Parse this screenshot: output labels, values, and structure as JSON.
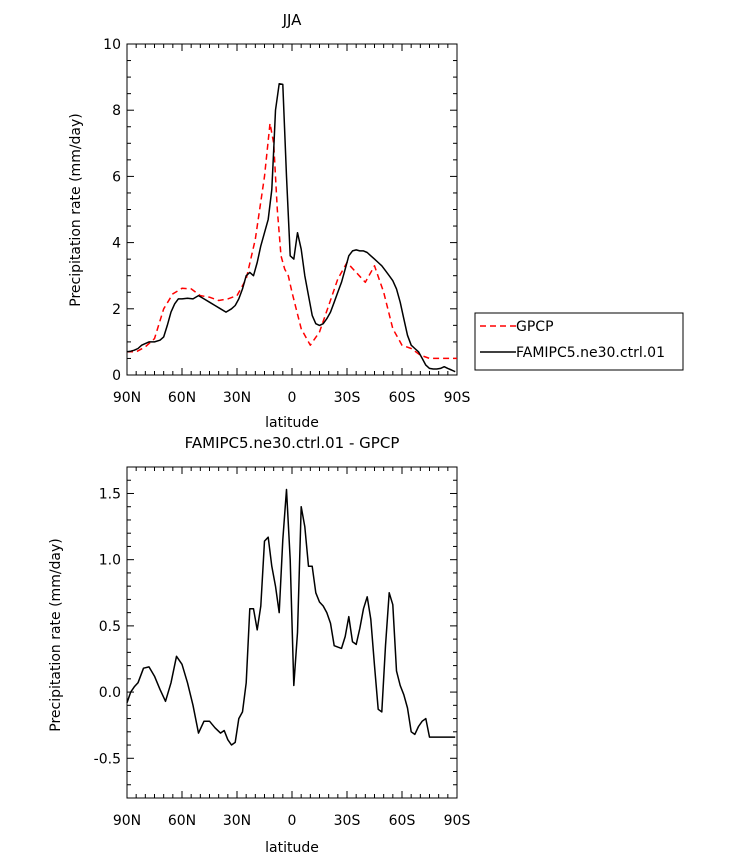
{
  "chart_data": [
    {
      "type": "line",
      "title": "JJA",
      "xlabel": "latitude",
      "ylabel": "Precipitation rate (mm/day)",
      "xlim": [
        90,
        -90
      ],
      "ylim": [
        0,
        10
      ],
      "x_ticks": [
        90,
        60,
        30,
        0,
        -30,
        -60,
        -90
      ],
      "x_tick_labels": [
        "90N",
        "60N",
        "30N",
        "0",
        "30S",
        "60S",
        "90S"
      ],
      "y_ticks": [
        0,
        2,
        4,
        6,
        8,
        10
      ],
      "y_tick_labels": [
        "0",
        "2",
        "4",
        "6",
        "8",
        "10"
      ],
      "legend_position": "right",
      "series": [
        {
          "name": "GPCP",
          "color": "#ff0000",
          "dash": "dashed",
          "x": [
            90,
            85,
            80,
            75,
            70,
            65,
            60,
            55,
            50,
            45,
            40,
            35,
            30,
            25,
            20,
            15,
            12,
            10,
            8,
            6,
            4,
            2,
            0,
            -5,
            -10,
            -15,
            -20,
            -25,
            -30,
            -35,
            -40,
            -45,
            -50,
            -55,
            -60,
            -65,
            -70,
            -75,
            -80,
            -85,
            -90
          ],
          "values": [
            0.7,
            0.7,
            0.85,
            1.1,
            2.0,
            2.45,
            2.62,
            2.6,
            2.4,
            2.35,
            2.25,
            2.3,
            2.4,
            2.9,
            4.1,
            6.0,
            7.6,
            7.0,
            5.0,
            3.6,
            3.2,
            3.0,
            2.5,
            1.4,
            0.9,
            1.3,
            2.1,
            2.9,
            3.4,
            3.1,
            2.8,
            3.3,
            2.5,
            1.4,
            0.9,
            0.8,
            0.6,
            0.5,
            0.5,
            0.5,
            0.5
          ]
        },
        {
          "name": "FAMIPC5.ne30.ctrl.01",
          "color": "#000000",
          "dash": "solid",
          "x": [
            90,
            88,
            86,
            84,
            82,
            80,
            78,
            75,
            72,
            70,
            68,
            66,
            64,
            62,
            60,
            57,
            54,
            51,
            48,
            45,
            42,
            39,
            36,
            33,
            31,
            29,
            27,
            25,
            23,
            21,
            19,
            17,
            15,
            13,
            11,
            10,
            9,
            7,
            5,
            3,
            1,
            -1,
            -3,
            -5,
            -7,
            -9,
            -11,
            -13,
            -15,
            -17,
            -19,
            -21,
            -23,
            -25,
            -27,
            -29,
            -31,
            -33,
            -35,
            -37,
            -39,
            -41,
            -43,
            -45,
            -47,
            -49,
            -51,
            -53,
            -55,
            -57,
            -59,
            -61,
            -63,
            -65,
            -67,
            -69,
            -71,
            -73,
            -75,
            -77,
            -79,
            -81,
            -83,
            -85,
            -87,
            -89
          ],
          "values": [
            0.7,
            0.72,
            0.75,
            0.8,
            0.9,
            0.95,
            1.0,
            1.0,
            1.05,
            1.15,
            1.5,
            1.9,
            2.15,
            2.3,
            2.3,
            2.32,
            2.3,
            2.4,
            2.3,
            2.2,
            2.1,
            2.0,
            1.9,
            2.0,
            2.1,
            2.3,
            2.6,
            3.0,
            3.1,
            3.0,
            3.4,
            3.9,
            4.3,
            4.7,
            5.6,
            6.8,
            8.0,
            8.8,
            8.78,
            6.0,
            3.6,
            3.5,
            4.3,
            3.8,
            3.0,
            2.4,
            1.8,
            1.55,
            1.5,
            1.55,
            1.7,
            1.9,
            2.2,
            2.5,
            2.8,
            3.2,
            3.6,
            3.75,
            3.78,
            3.75,
            3.75,
            3.7,
            3.6,
            3.5,
            3.4,
            3.3,
            3.15,
            3.0,
            2.85,
            2.6,
            2.2,
            1.7,
            1.2,
            0.9,
            0.8,
            0.7,
            0.5,
            0.3,
            0.2,
            0.18,
            0.18,
            0.2,
            0.25,
            0.2,
            0.15,
            0.1
          ]
        }
      ]
    },
    {
      "type": "line",
      "title": "FAMIPC5.ne30.ctrl.01 - GPCP",
      "xlabel": "latitude",
      "ylabel": "Precipitation rate (mm/day)",
      "xlim": [
        90,
        -90
      ],
      "ylim": [
        -0.8,
        1.7
      ],
      "x_ticks": [
        90,
        60,
        30,
        0,
        -30,
        -60,
        -90
      ],
      "x_tick_labels": [
        "90N",
        "60N",
        "30N",
        "0",
        "30S",
        "60S",
        "90S"
      ],
      "y_ticks": [
        -0.5,
        0.0,
        0.5,
        1.0,
        1.5
      ],
      "y_tick_labels": [
        "-0.5",
        "0.0",
        "0.5",
        "1.0",
        "1.5"
      ],
      "series": [
        {
          "color": "#000000",
          "dash": "solid",
          "x": [
            90,
            88,
            86,
            84,
            81,
            78,
            75,
            72,
            69,
            66,
            63,
            60,
            57,
            54,
            51,
            48,
            45,
            42,
            39,
            37,
            35,
            33,
            31,
            29,
            27,
            25,
            23,
            21,
            19,
            17,
            15,
            13,
            11,
            9,
            7,
            5,
            3,
            1,
            -1,
            -3,
            -5,
            -7,
            -9,
            -11,
            -13,
            -15,
            -17,
            -19,
            -21,
            -23,
            -25,
            -27,
            -29,
            -31,
            -33,
            -35,
            -37,
            -39,
            -41,
            -43,
            -45,
            -47,
            -49,
            -51,
            -53,
            -55,
            -57,
            -59,
            -61,
            -63,
            -65,
            -67,
            -69,
            -71,
            -73,
            -75,
            -77,
            -79,
            -81,
            -83,
            -85,
            -87,
            -89
          ],
          "values": [
            -0.08,
            0.0,
            0.04,
            0.07,
            0.18,
            0.19,
            0.12,
            0.02,
            -0.07,
            0.07,
            0.27,
            0.21,
            0.07,
            -0.1,
            -0.31,
            -0.22,
            -0.22,
            -0.27,
            -0.31,
            -0.29,
            -0.36,
            -0.4,
            -0.38,
            -0.2,
            -0.15,
            0.07,
            0.63,
            0.63,
            0.47,
            0.65,
            1.14,
            1.17,
            0.95,
            0.8,
            0.6,
            1.15,
            1.53,
            1.0,
            0.05,
            0.45,
            1.4,
            1.25,
            0.95,
            0.95,
            0.75,
            0.68,
            0.65,
            0.6,
            0.52,
            0.35,
            0.34,
            0.33,
            0.42,
            0.57,
            0.38,
            0.36,
            0.48,
            0.63,
            0.72,
            0.55,
            0.2,
            -0.13,
            -0.15,
            0.35,
            0.75,
            0.66,
            0.16,
            0.05,
            -0.02,
            -0.12,
            -0.3,
            -0.32,
            -0.26,
            -0.22,
            -0.2,
            -0.34,
            -0.34,
            -0.34,
            -0.34,
            -0.34,
            -0.34,
            -0.34,
            -0.34
          ]
        }
      ]
    }
  ]
}
